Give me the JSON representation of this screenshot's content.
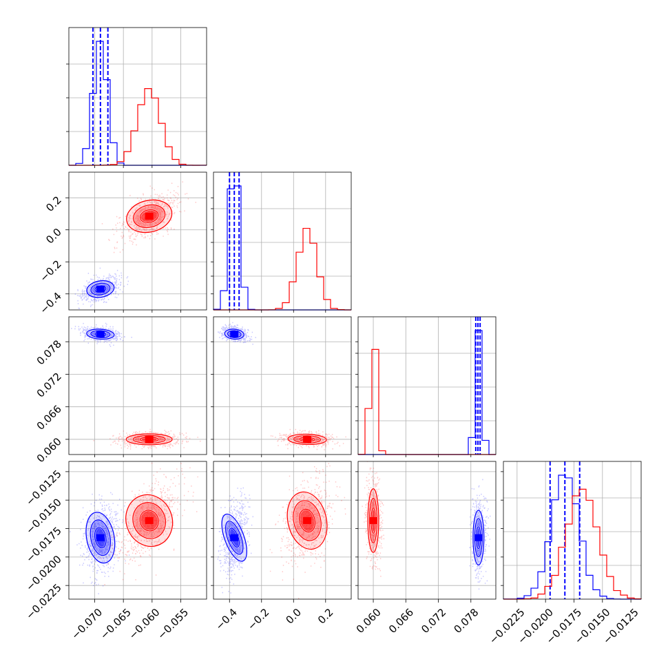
{
  "chart_data": {
    "type": "corner",
    "grid": true,
    "colors": {
      "series_a": "#0000ff",
      "series_b": "#ff0000"
    },
    "params": [
      {
        "range": [
          -0.0745,
          -0.0505
        ],
        "ticks": [
          -0.07,
          -0.065,
          -0.06,
          -0.055
        ],
        "tick_labels": [
          "−0.070",
          "−0.065",
          "−0.060",
          "−0.055"
        ]
      },
      {
        "range": [
          -0.5,
          0.36
        ],
        "ticks": [
          -0.4,
          -0.2,
          0.0,
          0.2
        ],
        "tick_labels": [
          "−0.4",
          "−0.2",
          "0.0",
          "0.2"
        ]
      },
      {
        "range": [
          0.0572,
          0.0826
        ],
        "ticks": [
          0.06,
          0.066,
          0.072,
          0.078
        ],
        "tick_labels": [
          "0.060",
          "0.066",
          "0.072",
          "0.078"
        ]
      },
      {
        "range": [
          -0.0237,
          -0.0116
        ],
        "ticks": [
          -0.0225,
          -0.02,
          -0.0175,
          -0.015,
          -0.0125
        ],
        "tick_labels": [
          "−0.0225",
          "−0.0200",
          "−0.0175",
          "−0.0150",
          "−0.0125"
        ]
      }
    ],
    "series": [
      {
        "name": "",
        "color": "#0000ff",
        "mean": [
          -0.069,
          -0.37,
          0.0794,
          -0.0183
        ],
        "std": [
          0.0012,
          0.03,
          0.0005,
          0.0012
        ],
        "corr": {
          "0-1": 0.5,
          "0-2": -0.3,
          "0-3": 0.2,
          "1-2": -0.3,
          "1-3": 0.3,
          "2-3": 0.0
        },
        "quantiles": [
          [
            -0.0703,
            -0.069,
            -0.0677
          ],
          [
            -0.4,
            -0.37,
            -0.34
          ],
          [
            0.0789,
            0.0793,
            0.0797
          ],
          [
            -0.0196,
            -0.0183,
            -0.017
          ]
        ]
      },
      {
        "name": "",
        "color": "#ff0000",
        "mean": [
          -0.0605,
          0.085,
          0.06,
          -0.0168
        ],
        "std": [
          0.002,
          0.06,
          0.0005,
          0.0014
        ],
        "corr": {
          "0-1": 0.6,
          "0-2": 0.0,
          "0-3": 0.6,
          "1-2": -0.2,
          "1-3": 0.3,
          "2-3": 0.0
        },
        "quantiles": null
      }
    ]
  }
}
